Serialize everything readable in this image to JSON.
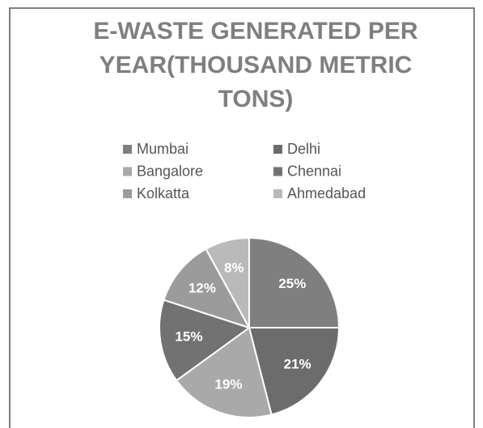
{
  "chart_data": {
    "type": "pie",
    "title": [
      "E-WASTE GENERATED PER",
      "YEAR(THOUSAND METRIC",
      "TONS)"
    ],
    "categories": [
      "Mumbai",
      "Delhi",
      "Bangalore",
      "Chennai",
      "Kolkatta",
      "Ahmedabad"
    ],
    "values": [
      25,
      21,
      19,
      15,
      12,
      8
    ],
    "value_labels": [
      "25%",
      "21%",
      "19%",
      "15%",
      "12%",
      "8%"
    ],
    "colors": [
      "#7f7f7f",
      "#6c6c6c",
      "#a9a9a9",
      "#727272",
      "#9b9b9b",
      "#b9b9b9"
    ],
    "legend": "top"
  }
}
